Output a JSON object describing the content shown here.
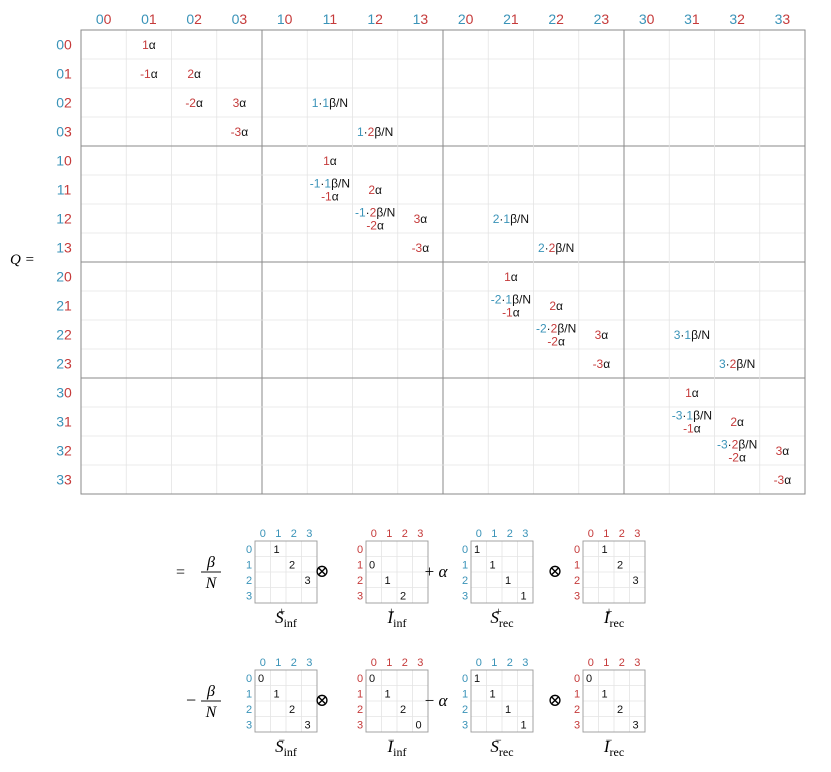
{
  "matrix": {
    "label": "Q =",
    "col_labels": [
      "00",
      "01",
      "02",
      "03",
      "10",
      "11",
      "12",
      "13",
      "20",
      "21",
      "22",
      "23",
      "30",
      "31",
      "32",
      "33"
    ],
    "row_labels": [
      "00",
      "01",
      "02",
      "03",
      "10",
      "11",
      "12",
      "13",
      "20",
      "21",
      "22",
      "23",
      "30",
      "31",
      "32",
      "33"
    ],
    "entries": [
      {
        "r": 0,
        "c": 1,
        "lines": [
          [
            [
              "1",
              "red"
            ],
            [
              "α",
              "blk"
            ]
          ]
        ]
      },
      {
        "r": 1,
        "c": 1,
        "lines": [
          [
            [
              "-1",
              "red"
            ],
            [
              "α",
              "blk"
            ]
          ]
        ]
      },
      {
        "r": 1,
        "c": 2,
        "lines": [
          [
            [
              "2",
              "red"
            ],
            [
              "α",
              "blk"
            ]
          ]
        ]
      },
      {
        "r": 2,
        "c": 2,
        "lines": [
          [
            [
              "-2",
              "red"
            ],
            [
              "α",
              "blk"
            ]
          ]
        ]
      },
      {
        "r": 2,
        "c": 3,
        "lines": [
          [
            [
              "3",
              "red"
            ],
            [
              "α",
              "blk"
            ]
          ]
        ]
      },
      {
        "r": 2,
        "c": 5,
        "lines": [
          [
            [
              "1",
              "blue"
            ],
            [
              "·",
              "blk"
            ],
            [
              "1",
              "blue"
            ],
            [
              "β/N",
              "blk"
            ]
          ]
        ]
      },
      {
        "r": 3,
        "c": 3,
        "lines": [
          [
            [
              "-3",
              "red"
            ],
            [
              "α",
              "blk"
            ]
          ]
        ]
      },
      {
        "r": 3,
        "c": 6,
        "lines": [
          [
            [
              "1",
              "blue"
            ],
            [
              "·",
              "blk"
            ],
            [
              "2",
              "red"
            ],
            [
              "β/N",
              "blk"
            ]
          ]
        ]
      },
      {
        "r": 4,
        "c": 5,
        "lines": [
          [
            [
              "1",
              "red"
            ],
            [
              "α",
              "blk"
            ]
          ]
        ]
      },
      {
        "r": 5,
        "c": 5,
        "lines": [
          [
            [
              "-1",
              "blue"
            ],
            [
              "·",
              "blk"
            ],
            [
              "1",
              "blue"
            ],
            [
              "β/N",
              "blk"
            ]
          ],
          [
            [
              "-1",
              "red"
            ],
            [
              "α",
              "blk"
            ]
          ]
        ]
      },
      {
        "r": 5,
        "c": 6,
        "lines": [
          [
            [
              "2",
              "red"
            ],
            [
              "α",
              "blk"
            ]
          ]
        ]
      },
      {
        "r": 6,
        "c": 6,
        "lines": [
          [
            [
              "-1",
              "blue"
            ],
            [
              "·",
              "blk"
            ],
            [
              "2",
              "red"
            ],
            [
              "β/N",
              "blk"
            ]
          ],
          [
            [
              "-2",
              "red"
            ],
            [
              "α",
              "blk"
            ]
          ]
        ]
      },
      {
        "r": 6,
        "c": 7,
        "lines": [
          [
            [
              "3",
              "red"
            ],
            [
              "α",
              "blk"
            ]
          ]
        ]
      },
      {
        "r": 6,
        "c": 9,
        "lines": [
          [
            [
              "2",
              "blue"
            ],
            [
              "·",
              "blk"
            ],
            [
              "1",
              "blue"
            ],
            [
              "β/N",
              "blk"
            ]
          ]
        ]
      },
      {
        "r": 7,
        "c": 7,
        "lines": [
          [
            [
              "-3",
              "red"
            ],
            [
              "α",
              "blk"
            ]
          ]
        ]
      },
      {
        "r": 7,
        "c": 10,
        "lines": [
          [
            [
              "2",
              "blue"
            ],
            [
              "·",
              "blk"
            ],
            [
              "2",
              "red"
            ],
            [
              "β/N",
              "blk"
            ]
          ]
        ]
      },
      {
        "r": 8,
        "c": 9,
        "lines": [
          [
            [
              "1",
              "red"
            ],
            [
              "α",
              "blk"
            ]
          ]
        ]
      },
      {
        "r": 9,
        "c": 9,
        "lines": [
          [
            [
              "-2",
              "blue"
            ],
            [
              "·",
              "blk"
            ],
            [
              "1",
              "blue"
            ],
            [
              "β/N",
              "blk"
            ]
          ],
          [
            [
              "-1",
              "red"
            ],
            [
              "α",
              "blk"
            ]
          ]
        ]
      },
      {
        "r": 9,
        "c": 10,
        "lines": [
          [
            [
              "2",
              "red"
            ],
            [
              "α",
              "blk"
            ]
          ]
        ]
      },
      {
        "r": 10,
        "c": 10,
        "lines": [
          [
            [
              "-2",
              "blue"
            ],
            [
              "·",
              "blk"
            ],
            [
              "2",
              "red"
            ],
            [
              "β/N",
              "blk"
            ]
          ],
          [
            [
              "-2",
              "red"
            ],
            [
              "α",
              "blk"
            ]
          ]
        ]
      },
      {
        "r": 10,
        "c": 11,
        "lines": [
          [
            [
              "3",
              "red"
            ],
            [
              "α",
              "blk"
            ]
          ]
        ]
      },
      {
        "r": 10,
        "c": 13,
        "lines": [
          [
            [
              "3",
              "blue"
            ],
            [
              "·",
              "blk"
            ],
            [
              "1",
              "blue"
            ],
            [
              "β/N",
              "blk"
            ]
          ]
        ]
      },
      {
        "r": 11,
        "c": 11,
        "lines": [
          [
            [
              "-3",
              "red"
            ],
            [
              "α",
              "blk"
            ]
          ]
        ]
      },
      {
        "r": 11,
        "c": 14,
        "lines": [
          [
            [
              "3",
              "blue"
            ],
            [
              "·",
              "blk"
            ],
            [
              "2",
              "red"
            ],
            [
              "β/N",
              "blk"
            ]
          ]
        ]
      },
      {
        "r": 12,
        "c": 13,
        "lines": [
          [
            [
              "1",
              "red"
            ],
            [
              "α",
              "blk"
            ]
          ]
        ]
      },
      {
        "r": 13,
        "c": 13,
        "lines": [
          [
            [
              "-3",
              "blue"
            ],
            [
              "·",
              "blk"
            ],
            [
              "1",
              "blue"
            ],
            [
              "β/N",
              "blk"
            ]
          ],
          [
            [
              "-1",
              "red"
            ],
            [
              "α",
              "blk"
            ]
          ]
        ]
      },
      {
        "r": 13,
        "c": 14,
        "lines": [
          [
            [
              "2",
              "red"
            ],
            [
              "α",
              "blk"
            ]
          ]
        ]
      },
      {
        "r": 14,
        "c": 14,
        "lines": [
          [
            [
              "-3",
              "blue"
            ],
            [
              "·",
              "blk"
            ],
            [
              "2",
              "red"
            ],
            [
              "β/N",
              "blk"
            ]
          ],
          [
            [
              "-2",
              "red"
            ],
            [
              "α",
              "blk"
            ]
          ]
        ]
      },
      {
        "r": 14,
        "c": 15,
        "lines": [
          [
            [
              "3",
              "red"
            ],
            [
              "α",
              "blk"
            ]
          ]
        ]
      },
      {
        "r": 15,
        "c": 15,
        "lines": [
          [
            [
              "-3",
              "red"
            ],
            [
              "α",
              "blk"
            ]
          ]
        ]
      }
    ]
  },
  "decomposition": {
    "equals": "=",
    "small_labels": [
      "0",
      "1",
      "2",
      "3"
    ],
    "rows": [
      {
        "lead_sign": "",
        "terms": [
          {
            "coef_num": "β",
            "coef_den": "N",
            "mat_name": "S",
            "sub": "inf",
            "sup": "+",
            "cells": [
              [
                0,
                1,
                "1"
              ],
              [
                1,
                2,
                "2"
              ],
              [
                2,
                3,
                "3"
              ]
            ]
          },
          {
            "op": "⊗",
            "mat_name": "I",
            "sub": "inf",
            "sup": "+",
            "cells": [
              [
                1,
                0,
                "0"
              ],
              [
                2,
                1,
                "1"
              ],
              [
                3,
                2,
                "2"
              ]
            ]
          },
          {
            "op": "+ α",
            "mat_name": "S",
            "sub": "rec",
            "sup": "+",
            "cells": [
              [
                0,
                0,
                "1"
              ],
              [
                1,
                1,
                "1"
              ],
              [
                2,
                2,
                "1"
              ],
              [
                3,
                3,
                "1"
              ]
            ]
          },
          {
            "op": "⊗",
            "mat_name": "I",
            "sub": "rec",
            "sup": "+",
            "cells": [
              [
                0,
                1,
                "1"
              ],
              [
                1,
                2,
                "2"
              ],
              [
                2,
                3,
                "3"
              ]
            ]
          }
        ]
      },
      {
        "lead_sign": "−",
        "terms": [
          {
            "coef_num": "β",
            "coef_den": "N",
            "mat_name": "S",
            "sub": "inf",
            "sup": "−",
            "cells": [
              [
                0,
                0,
                "0"
              ],
              [
                1,
                1,
                "1"
              ],
              [
                2,
                2,
                "2"
              ],
              [
                3,
                3,
                "3"
              ]
            ]
          },
          {
            "op": "⊗",
            "mat_name": "I",
            "sub": "inf",
            "sup": "−",
            "cells": [
              [
                0,
                0,
                "0"
              ],
              [
                1,
                1,
                "1"
              ],
              [
                2,
                2,
                "2"
              ],
              [
                3,
                3,
                "0"
              ]
            ]
          },
          {
            "op": "− α",
            "mat_name": "S",
            "sub": "rec",
            "sup": "−",
            "cells": [
              [
                0,
                0,
                "1"
              ],
              [
                1,
                1,
                "1"
              ],
              [
                2,
                2,
                "1"
              ],
              [
                3,
                3,
                "1"
              ]
            ]
          },
          {
            "op": "⊗",
            "mat_name": "I",
            "sub": "rec",
            "sup": "−",
            "cells": [
              [
                0,
                0,
                "0"
              ],
              [
                1,
                1,
                "1"
              ],
              [
                2,
                2,
                "2"
              ],
              [
                3,
                3,
                "3"
              ]
            ]
          }
        ]
      }
    ]
  },
  "colors": {
    "blue": "#3a93b8",
    "red": "#c53a3a",
    "grid_light": "#e4e4e4",
    "grid_dark": "#8a8a8a"
  }
}
